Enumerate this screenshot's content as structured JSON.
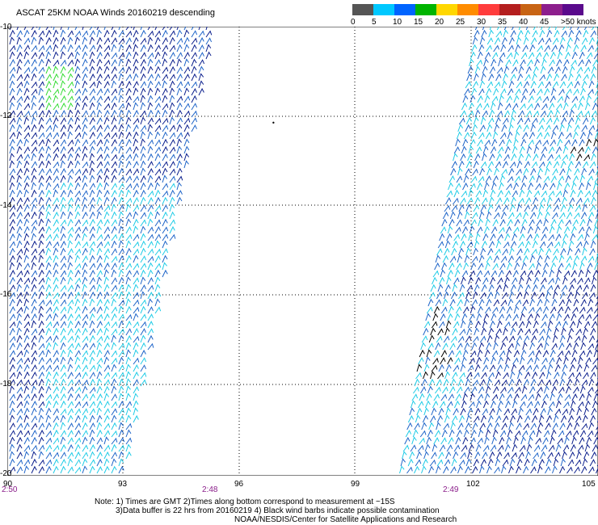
{
  "title": "ASCAT 25KM NOAA Winds 20160219 descending",
  "colorbar": {
    "ticks": [
      "0",
      "5",
      "10",
      "15",
      "20",
      "25",
      "30",
      "35",
      "40",
      "45",
      ">50 knots"
    ],
    "colors": [
      "#555555",
      "#00c8ff",
      "#0064ff",
      "#00b400",
      "#ffd700",
      "#ff8c00",
      "#ff3c3c",
      "#b41e1e",
      "#c86414",
      "#8c1e8c",
      "#5a0a8c"
    ]
  },
  "y_axis": {
    "labels": [
      "-10",
      "-12",
      "-14",
      "-16",
      "-18",
      "-20"
    ]
  },
  "x_axis": {
    "labels": [
      "90",
      "93",
      "96",
      "99",
      "102",
      "105"
    ]
  },
  "times": [
    "2:50",
    "2:48",
    "2:49"
  ],
  "notes": {
    "line1": "Note: 1) Times are GMT 2)Times along bottom correspond to measurement at ~15S",
    "line2": "3)Data buffer is 22 hrs from 20160219 4) Black wind barbs indicate possible contamination",
    "line3": "NOAA/NESDIS/Center for Satellite Applications and Research"
  },
  "barb_colors": {
    "dark_blue": "#0a1e8c",
    "mid_blue": "#1e64c8",
    "cyan": "#1ecbe6",
    "green": "#32dc32",
    "black": "#000000"
  }
}
